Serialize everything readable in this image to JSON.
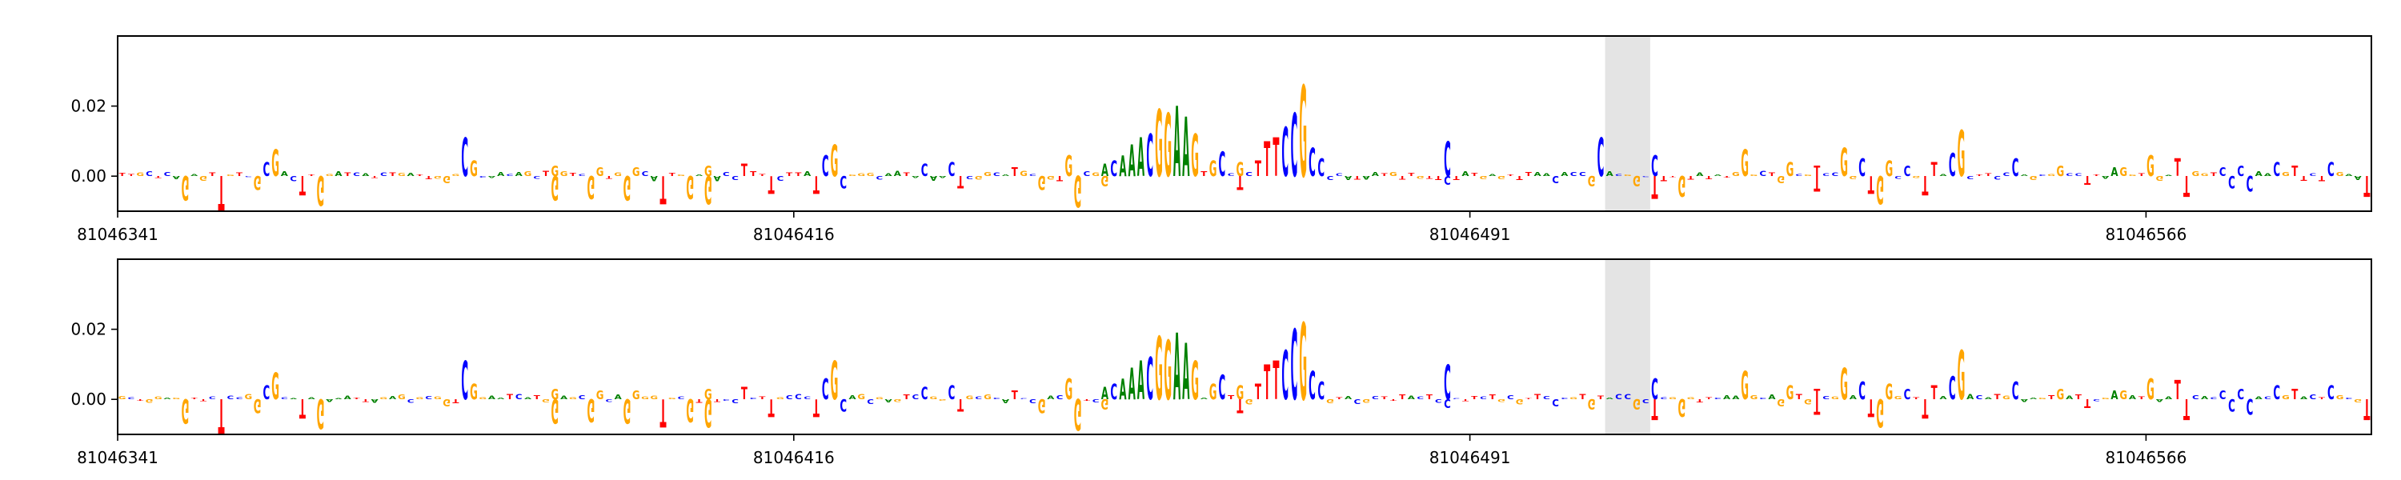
{
  "chart_data": [
    {
      "type": "sequence-logo",
      "title": "",
      "xlabel": "",
      "ylabel": "",
      "ylim": [
        -0.01,
        0.04
      ],
      "yticks": [
        "0.02",
        "0.00"
      ],
      "ytick_values": [
        0.02,
        0.0
      ],
      "xlim": [
        81046341,
        81046591
      ],
      "xticks": [
        "81046341",
        "81046416",
        "81046491",
        "81046566"
      ],
      "xtick_values": [
        81046341,
        81046416,
        81046491,
        81046566
      ],
      "highlight": [
        81046506,
        81046511
      ],
      "highlight_color": "#e4e4e4",
      "base_colors": {
        "A": "#008000",
        "C": "#0000ff",
        "G": "#ffa500",
        "T": "#ff0000"
      },
      "pos_peaks": [
        {
          "x": 81046357,
          "b": "C",
          "v": 0.004
        },
        {
          "x": 81046358,
          "b": "G",
          "v": 0.0075
        },
        {
          "x": 81046379,
          "b": "C",
          "v": 0.011
        },
        {
          "x": 81046380,
          "b": "G",
          "v": 0.0045
        },
        {
          "x": 81046389,
          "b": "G",
          "v": 0.003
        },
        {
          "x": 81046394,
          "b": "G",
          "v": 0.0025
        },
        {
          "x": 81046398,
          "b": "G",
          "v": 0.0025
        },
        {
          "x": 81046406,
          "b": "G",
          "v": 0.003
        },
        {
          "x": 81046410,
          "b": "T",
          "v": 0.0035
        },
        {
          "x": 81046419,
          "b": "C",
          "v": 0.006
        },
        {
          "x": 81046420,
          "b": "G",
          "v": 0.009
        },
        {
          "x": 81046430,
          "b": "C",
          "v": 0.0035
        },
        {
          "x": 81046433,
          "b": "C",
          "v": 0.004
        },
        {
          "x": 81046440,
          "b": "T",
          "v": 0.0025
        },
        {
          "x": 81046446,
          "b": "G",
          "v": 0.006
        },
        {
          "x": 81046450,
          "b": "A",
          "v": 0.0035
        },
        {
          "x": 81046451,
          "b": "C",
          "v": 0.0045
        },
        {
          "x": 81046452,
          "b": "A",
          "v": 0.006
        },
        {
          "x": 81046453,
          "b": "A",
          "v": 0.009
        },
        {
          "x": 81046454,
          "b": "A",
          "v": 0.011
        },
        {
          "x": 81046455,
          "b": "C",
          "v": 0.012
        },
        {
          "x": 81046456,
          "b": "G",
          "v": 0.019
        },
        {
          "x": 81046457,
          "b": "G",
          "v": 0.018
        },
        {
          "x": 81046458,
          "b": "A",
          "v": 0.02
        },
        {
          "x": 81046459,
          "b": "A",
          "v": 0.017
        },
        {
          "x": 81046460,
          "b": "G",
          "v": 0.012
        },
        {
          "x": 81046462,
          "b": "G",
          "v": 0.0045
        },
        {
          "x": 81046463,
          "b": "C",
          "v": 0.007
        },
        {
          "x": 81046465,
          "b": "G",
          "v": 0.004
        },
        {
          "x": 81046467,
          "b": "T",
          "v": 0.0045
        },
        {
          "x": 81046468,
          "b": "T",
          "v": 0.01
        },
        {
          "x": 81046469,
          "b": "T",
          "v": 0.011
        },
        {
          "x": 81046470,
          "b": "C",
          "v": 0.014
        },
        {
          "x": 81046471,
          "b": "C",
          "v": 0.018
        },
        {
          "x": 81046472,
          "b": "G",
          "v": 0.026
        },
        {
          "x": 81046473,
          "b": "C",
          "v": 0.008
        },
        {
          "x": 81046474,
          "b": "C",
          "v": 0.005
        },
        {
          "x": 81046488,
          "b": "C",
          "v": 0.01
        },
        {
          "x": 81046505,
          "b": "C",
          "v": 0.011
        },
        {
          "x": 81046511,
          "b": "C",
          "v": 0.006
        },
        {
          "x": 81046521,
          "b": "G",
          "v": 0.0075
        },
        {
          "x": 81046526,
          "b": "G",
          "v": 0.004
        },
        {
          "x": 81046529,
          "b": "T",
          "v": 0.003
        },
        {
          "x": 81046532,
          "b": "G",
          "v": 0.008
        },
        {
          "x": 81046534,
          "b": "C",
          "v": 0.005
        },
        {
          "x": 81046537,
          "b": "G",
          "v": 0.0045
        },
        {
          "x": 81046539,
          "b": "C",
          "v": 0.003
        },
        {
          "x": 81046542,
          "b": "T",
          "v": 0.004
        },
        {
          "x": 81046544,
          "b": "C",
          "v": 0.0065
        },
        {
          "x": 81046545,
          "b": "G",
          "v": 0.013
        },
        {
          "x": 81046551,
          "b": "C",
          "v": 0.005
        },
        {
          "x": 81046556,
          "b": "G",
          "v": 0.003
        },
        {
          "x": 81046562,
          "b": "A",
          "v": 0.0025
        },
        {
          "x": 81046563,
          "b": "G",
          "v": 0.0025
        },
        {
          "x": 81046566,
          "b": "G",
          "v": 0.006
        },
        {
          "x": 81046569,
          "b": "T",
          "v": 0.005
        },
        {
          "x": 81046574,
          "b": "C",
          "v": 0.0025
        },
        {
          "x": 81046576,
          "b": "C",
          "v": 0.003
        },
        {
          "x": 81046580,
          "b": "C",
          "v": 0.004
        },
        {
          "x": 81046582,
          "b": "T",
          "v": 0.003
        },
        {
          "x": 81046586,
          "b": "C",
          "v": 0.004
        }
      ],
      "neg_peaks": [
        {
          "x": 81046348,
          "b": "G",
          "v": -0.007
        },
        {
          "x": 81046352,
          "b": "T",
          "v": -0.01
        },
        {
          "x": 81046356,
          "b": "G",
          "v": -0.004
        },
        {
          "x": 81046361,
          "b": "T",
          "v": -0.0055
        },
        {
          "x": 81046363,
          "b": "G",
          "v": -0.0085
        },
        {
          "x": 81046377,
          "b": "G",
          "v": -0.002
        },
        {
          "x": 81046389,
          "b": "G",
          "v": -0.007
        },
        {
          "x": 81046393,
          "b": "G",
          "v": -0.0065
        },
        {
          "x": 81046397,
          "b": "G",
          "v": -0.007
        },
        {
          "x": 81046401,
          "b": "T",
          "v": -0.008
        },
        {
          "x": 81046404,
          "b": "G",
          "v": -0.0065
        },
        {
          "x": 81046406,
          "b": "G",
          "v": -0.008
        },
        {
          "x": 81046413,
          "b": "T",
          "v": -0.005
        },
        {
          "x": 81046418,
          "b": "T",
          "v": -0.005
        },
        {
          "x": 81046421,
          "b": "C",
          "v": -0.0035
        },
        {
          "x": 81046434,
          "b": "T",
          "v": -0.0035
        },
        {
          "x": 81046443,
          "b": "G",
          "v": -0.004
        },
        {
          "x": 81046447,
          "b": "G",
          "v": -0.009
        },
        {
          "x": 81046450,
          "b": "G",
          "v": -0.003
        },
        {
          "x": 81046465,
          "b": "T",
          "v": -0.004
        },
        {
          "x": 81046488,
          "b": "C",
          "v": -0.0025
        },
        {
          "x": 81046500,
          "b": "C",
          "v": -0.002
        },
        {
          "x": 81046504,
          "b": "G",
          "v": -0.003
        },
        {
          "x": 81046509,
          "b": "G",
          "v": -0.003
        },
        {
          "x": 81046511,
          "b": "T",
          "v": -0.0065
        },
        {
          "x": 81046514,
          "b": "G",
          "v": -0.006
        },
        {
          "x": 81046525,
          "b": "G",
          "v": -0.002
        },
        {
          "x": 81046529,
          "b": "T",
          "v": -0.0045
        },
        {
          "x": 81046535,
          "b": "T",
          "v": -0.005
        },
        {
          "x": 81046536,
          "b": "G",
          "v": -0.008
        },
        {
          "x": 81046541,
          "b": "T",
          "v": -0.0055
        },
        {
          "x": 81046559,
          "b": "T",
          "v": -0.0025
        },
        {
          "x": 81046570,
          "b": "T",
          "v": -0.006
        },
        {
          "x": 81046575,
          "b": "C",
          "v": -0.0035
        },
        {
          "x": 81046577,
          "b": "C",
          "v": -0.0045
        },
        {
          "x": 81046590,
          "b": "T",
          "v": -0.006
        }
      ]
    },
    {
      "type": "sequence-logo",
      "title": "",
      "xlabel": "",
      "ylabel": "",
      "ylim": [
        -0.01,
        0.04
      ],
      "yticks": [
        "0.02",
        "0.00"
      ],
      "ytick_values": [
        0.02,
        0.0
      ],
      "xlim": [
        81046341,
        81046591
      ],
      "xticks": [
        "81046341",
        "81046416",
        "81046491",
        "81046566"
      ],
      "xtick_values": [
        81046341,
        81046416,
        81046491,
        81046566
      ],
      "highlight": [
        81046506,
        81046511
      ],
      "highlight_color": "#e4e4e4",
      "base_colors": {
        "A": "#008000",
        "C": "#0000ff",
        "G": "#ffa500",
        "T": "#ff0000"
      },
      "pos_peaks": [
        {
          "x": 81046357,
          "b": "C",
          "v": 0.004
        },
        {
          "x": 81046358,
          "b": "G",
          "v": 0.0075
        },
        {
          "x": 81046379,
          "b": "C",
          "v": 0.011
        },
        {
          "x": 81046380,
          "b": "G",
          "v": 0.0045
        },
        {
          "x": 81046389,
          "b": "G",
          "v": 0.003
        },
        {
          "x": 81046394,
          "b": "G",
          "v": 0.0025
        },
        {
          "x": 81046398,
          "b": "G",
          "v": 0.0025
        },
        {
          "x": 81046406,
          "b": "G",
          "v": 0.003
        },
        {
          "x": 81046410,
          "b": "T",
          "v": 0.0035
        },
        {
          "x": 81046419,
          "b": "C",
          "v": 0.006
        },
        {
          "x": 81046420,
          "b": "G",
          "v": 0.011
        },
        {
          "x": 81046430,
          "b": "C",
          "v": 0.0035
        },
        {
          "x": 81046433,
          "b": "C",
          "v": 0.004
        },
        {
          "x": 81046440,
          "b": "T",
          "v": 0.0025
        },
        {
          "x": 81046446,
          "b": "G",
          "v": 0.006
        },
        {
          "x": 81046450,
          "b": "A",
          "v": 0.0035
        },
        {
          "x": 81046451,
          "b": "C",
          "v": 0.0045
        },
        {
          "x": 81046452,
          "b": "A",
          "v": 0.006
        },
        {
          "x": 81046453,
          "b": "A",
          "v": 0.009
        },
        {
          "x": 81046454,
          "b": "A",
          "v": 0.011
        },
        {
          "x": 81046455,
          "b": "C",
          "v": 0.012
        },
        {
          "x": 81046456,
          "b": "G",
          "v": 0.018
        },
        {
          "x": 81046457,
          "b": "G",
          "v": 0.017
        },
        {
          "x": 81046458,
          "b": "A",
          "v": 0.019
        },
        {
          "x": 81046459,
          "b": "A",
          "v": 0.016
        },
        {
          "x": 81046460,
          "b": "G",
          "v": 0.011
        },
        {
          "x": 81046462,
          "b": "G",
          "v": 0.0045
        },
        {
          "x": 81046463,
          "b": "C",
          "v": 0.007
        },
        {
          "x": 81046465,
          "b": "G",
          "v": 0.004
        },
        {
          "x": 81046467,
          "b": "T",
          "v": 0.0045
        },
        {
          "x": 81046468,
          "b": "T",
          "v": 0.01
        },
        {
          "x": 81046469,
          "b": "T",
          "v": 0.011
        },
        {
          "x": 81046470,
          "b": "C",
          "v": 0.014
        },
        {
          "x": 81046471,
          "b": "C",
          "v": 0.02
        },
        {
          "x": 81046472,
          "b": "G",
          "v": 0.022
        },
        {
          "x": 81046473,
          "b": "C",
          "v": 0.008
        },
        {
          "x": 81046474,
          "b": "C",
          "v": 0.005
        },
        {
          "x": 81046488,
          "b": "C",
          "v": 0.01
        },
        {
          "x": 81046511,
          "b": "C",
          "v": 0.006
        },
        {
          "x": 81046521,
          "b": "G",
          "v": 0.008
        },
        {
          "x": 81046526,
          "b": "G",
          "v": 0.004
        },
        {
          "x": 81046529,
          "b": "T",
          "v": 0.003
        },
        {
          "x": 81046532,
          "b": "G",
          "v": 0.009
        },
        {
          "x": 81046534,
          "b": "C",
          "v": 0.005
        },
        {
          "x": 81046537,
          "b": "G",
          "v": 0.0045
        },
        {
          "x": 81046539,
          "b": "C",
          "v": 0.003
        },
        {
          "x": 81046542,
          "b": "T",
          "v": 0.004
        },
        {
          "x": 81046544,
          "b": "C",
          "v": 0.0065
        },
        {
          "x": 81046545,
          "b": "G",
          "v": 0.014
        },
        {
          "x": 81046551,
          "b": "C",
          "v": 0.005
        },
        {
          "x": 81046556,
          "b": "G",
          "v": 0.003
        },
        {
          "x": 81046562,
          "b": "A",
          "v": 0.0025
        },
        {
          "x": 81046563,
          "b": "G",
          "v": 0.0025
        },
        {
          "x": 81046566,
          "b": "G",
          "v": 0.006
        },
        {
          "x": 81046569,
          "b": "T",
          "v": 0.0055
        },
        {
          "x": 81046574,
          "b": "C",
          "v": 0.0025
        },
        {
          "x": 81046576,
          "b": "C",
          "v": 0.003
        },
        {
          "x": 81046580,
          "b": "C",
          "v": 0.004
        },
        {
          "x": 81046582,
          "b": "T",
          "v": 0.003
        },
        {
          "x": 81046586,
          "b": "C",
          "v": 0.004
        }
      ],
      "neg_peaks": [
        {
          "x": 81046348,
          "b": "G",
          "v": -0.007
        },
        {
          "x": 81046352,
          "b": "T",
          "v": -0.01
        },
        {
          "x": 81046356,
          "b": "G",
          "v": -0.004
        },
        {
          "x": 81046361,
          "b": "T",
          "v": -0.0055
        },
        {
          "x": 81046363,
          "b": "G",
          "v": -0.0085
        },
        {
          "x": 81046377,
          "b": "G",
          "v": -0.002
        },
        {
          "x": 81046389,
          "b": "G",
          "v": -0.007
        },
        {
          "x": 81046393,
          "b": "G",
          "v": -0.0065
        },
        {
          "x": 81046397,
          "b": "G",
          "v": -0.007
        },
        {
          "x": 81046401,
          "b": "T",
          "v": -0.008
        },
        {
          "x": 81046404,
          "b": "G",
          "v": -0.0065
        },
        {
          "x": 81046406,
          "b": "G",
          "v": -0.008
        },
        {
          "x": 81046413,
          "b": "T",
          "v": -0.005
        },
        {
          "x": 81046418,
          "b": "T",
          "v": -0.005
        },
        {
          "x": 81046421,
          "b": "C",
          "v": -0.0035
        },
        {
          "x": 81046434,
          "b": "T",
          "v": -0.0035
        },
        {
          "x": 81046443,
          "b": "G",
          "v": -0.004
        },
        {
          "x": 81046447,
          "b": "G",
          "v": -0.009
        },
        {
          "x": 81046450,
          "b": "G",
          "v": -0.003
        },
        {
          "x": 81046465,
          "b": "T",
          "v": -0.004
        },
        {
          "x": 81046488,
          "b": "C",
          "v": -0.0025
        },
        {
          "x": 81046500,
          "b": "C",
          "v": -0.002
        },
        {
          "x": 81046504,
          "b": "G",
          "v": -0.003
        },
        {
          "x": 81046509,
          "b": "G",
          "v": -0.003
        },
        {
          "x": 81046511,
          "b": "T",
          "v": -0.006
        },
        {
          "x": 81046514,
          "b": "G",
          "v": -0.005
        },
        {
          "x": 81046525,
          "b": "G",
          "v": -0.002
        },
        {
          "x": 81046529,
          "b": "T",
          "v": -0.0045
        },
        {
          "x": 81046535,
          "b": "T",
          "v": -0.005
        },
        {
          "x": 81046536,
          "b": "G",
          "v": -0.008
        },
        {
          "x": 81046541,
          "b": "T",
          "v": -0.0055
        },
        {
          "x": 81046559,
          "b": "T",
          "v": -0.0025
        },
        {
          "x": 81046570,
          "b": "T",
          "v": -0.006
        },
        {
          "x": 81046575,
          "b": "C",
          "v": -0.0035
        },
        {
          "x": 81046577,
          "b": "C",
          "v": -0.0045
        },
        {
          "x": 81046590,
          "b": "T",
          "v": -0.006
        }
      ]
    }
  ]
}
